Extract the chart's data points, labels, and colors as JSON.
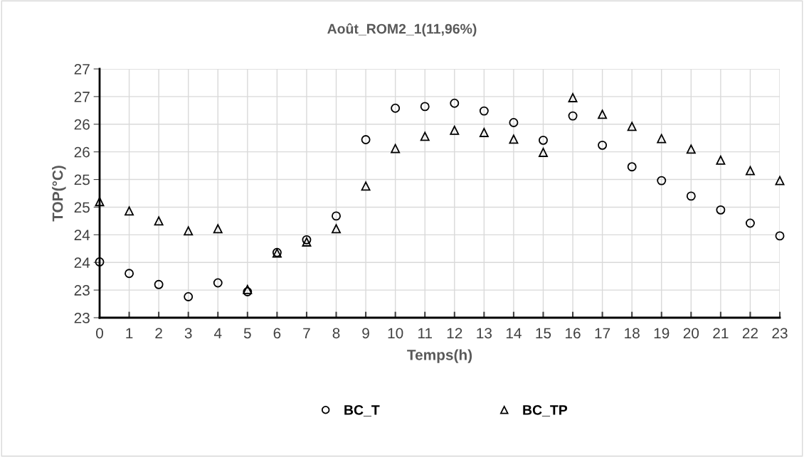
{
  "chart_data": {
    "type": "scatter",
    "title": "Août_ROM2_1(11,96%)",
    "xlabel": "Temps(h)",
    "ylabel": "TOP(°C)",
    "categories": [
      "0",
      "1",
      "2",
      "3",
      "4",
      "5",
      "6",
      "7",
      "8",
      "9",
      "10",
      "11",
      "12",
      "13",
      "14",
      "15",
      "16",
      "17",
      "18",
      "19",
      "20",
      "21",
      "22",
      "23"
    ],
    "ylim": [
      22.5,
      27
    ],
    "yticks": [
      {
        "value": 22.5,
        "label": "23"
      },
      {
        "value": 23,
        "label": "23"
      },
      {
        "value": 23.5,
        "label": "24"
      },
      {
        "value": 24,
        "label": "24"
      },
      {
        "value": 24.5,
        "label": "25"
      },
      {
        "value": 25,
        "label": "25"
      },
      {
        "value": 25.5,
        "label": "26"
      },
      {
        "value": 26,
        "label": "26"
      },
      {
        "value": 26.5,
        "label": "27"
      },
      {
        "value": 27,
        "label": "27"
      }
    ],
    "legend": "bottom",
    "grid": true,
    "series": [
      {
        "name": "BC_T",
        "color": "#000000",
        "marker": "circle",
        "values": [
          23.51,
          23.3,
          23.1,
          22.88,
          23.13,
          22.97,
          23.68,
          23.91,
          24.34,
          25.72,
          26.29,
          26.32,
          26.38,
          26.24,
          26.03,
          25.71,
          26.15,
          25.62,
          25.23,
          24.98,
          24.7,
          24.45,
          24.21,
          23.98
        ]
      },
      {
        "name": "BC_TP",
        "color": "#000000",
        "marker": "triangle",
        "values": [
          24.6,
          24.43,
          24.25,
          24.07,
          24.11,
          23.01,
          23.67,
          23.87,
          24.11,
          24.88,
          25.56,
          25.78,
          25.89,
          25.85,
          25.73,
          25.49,
          26.48,
          26.18,
          25.96,
          25.74,
          25.55,
          25.35,
          25.16,
          24.98
        ]
      }
    ]
  }
}
